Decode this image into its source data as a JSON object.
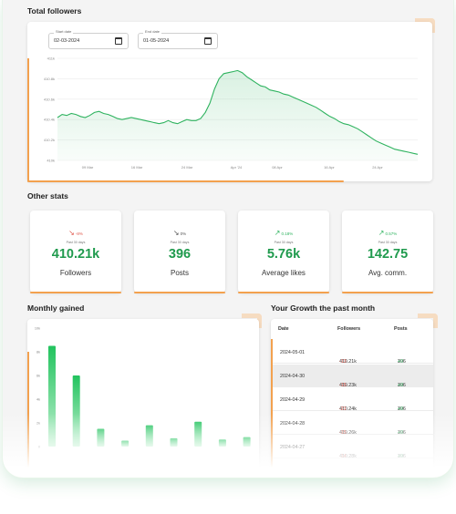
{
  "total_followers": {
    "title": "Total followers",
    "start_date": {
      "label": "Start date",
      "value": "02-03-2024"
    },
    "end_date": {
      "label": "End date",
      "value": "01-05-2024"
    },
    "icon": "calendar-icon"
  },
  "other_stats": {
    "title": "Other stats",
    "cards": [
      {
        "trend": "-8%",
        "direction": "down",
        "period": "Past 30 days",
        "value": "410.21k",
        "label": "Followers",
        "trend_color": "#e05a4f"
      },
      {
        "trend": "0%",
        "direction": "down",
        "period": "Past 30 days",
        "value": "396",
        "label": "Posts",
        "trend_color": "#555555"
      },
      {
        "trend": "0.18%",
        "direction": "up",
        "period": "Past 30 days",
        "value": "5.76k",
        "label": "Average likes",
        "trend_color": "#2fb35f"
      },
      {
        "trend": "0.57%",
        "direction": "up",
        "period": "Past 30 days",
        "value": "142.75",
        "label": "Avg. comm.",
        "trend_color": "#2fb35f"
      }
    ]
  },
  "monthly_gained": {
    "title": "Monthly gained"
  },
  "growth": {
    "title": "Your Growth the past month",
    "headers": [
      "Date",
      "Followers",
      "Posts"
    ],
    "rows": [
      {
        "date": "2024-05-01",
        "followers": "410.21k",
        "followers_delta": "-13",
        "posts": "396",
        "posts_delta": "+0"
      },
      {
        "date": "2024-04-30",
        "followers": "410.23k",
        "followers_delta": "-15",
        "posts": "396",
        "posts_delta": "+0"
      },
      {
        "date": "2024-04-29",
        "followers": "410.24k",
        "followers_delta": "-21",
        "posts": "396",
        "posts_delta": "+0"
      },
      {
        "date": "2024-04-28",
        "followers": "410.26k",
        "followers_delta": "-15",
        "posts": "396",
        "posts_delta": "+0"
      },
      {
        "date": "2024-04-27",
        "followers": "410.28k",
        "followers_delta": "-14",
        "posts": "396",
        "posts_delta": "+0"
      }
    ]
  },
  "colors": {
    "accent_green": "#1f9a4d",
    "accent_orange": "#f3a14e",
    "negative": "#e05a4f",
    "positive": "#2fb35f"
  },
  "chart_data": [
    {
      "type": "area",
      "title": "Total followers",
      "x_ticks": [
        "09 Mar",
        "16 Mar",
        "24 Mar",
        "Apr '24",
        "08 Apr",
        "16 Apr",
        "24 Apr"
      ],
      "y_ticks": [
        "410k",
        "410.2k",
        "410.4k",
        "410.6k",
        "410.8k",
        "411k"
      ],
      "ylim": [
        410000,
        411000
      ],
      "grid": "horizontal",
      "series": [
        {
          "values": [
            410420,
            410450,
            410440,
            410460,
            410450,
            410430,
            410420,
            410440,
            410470,
            410480,
            410460,
            410450,
            410430,
            410410,
            410400,
            410410,
            410420,
            410410,
            410400,
            410390,
            410380,
            410370,
            410360,
            410370,
            410390,
            410370,
            410360,
            410380,
            410400,
            410390,
            410390,
            410410,
            410470,
            410560,
            410700,
            410800,
            410850,
            410860,
            410870,
            410880,
            410860,
            410820,
            410790,
            410760,
            410730,
            410720,
            410690,
            410680,
            410670,
            410650,
            410640,
            410620,
            410600,
            410580,
            410560,
            410540,
            410520,
            410490,
            410460,
            410430,
            410410,
            410380,
            410360,
            410350,
            410330,
            410310,
            410280,
            410250,
            410220,
            410190,
            410170,
            410150,
            410130,
            410110,
            410100,
            410090,
            410080,
            410070,
            410060
          ]
        }
      ]
    },
    {
      "type": "bar",
      "title": "Monthly gained",
      "y_ticks": [
        "10k",
        "8k",
        "6k",
        "4k",
        "2k",
        "0"
      ],
      "ylim": [
        0,
        10000
      ],
      "values": [
        8500,
        6000,
        1500,
        500,
        1800,
        700,
        2100,
        600,
        800
      ]
    }
  ]
}
